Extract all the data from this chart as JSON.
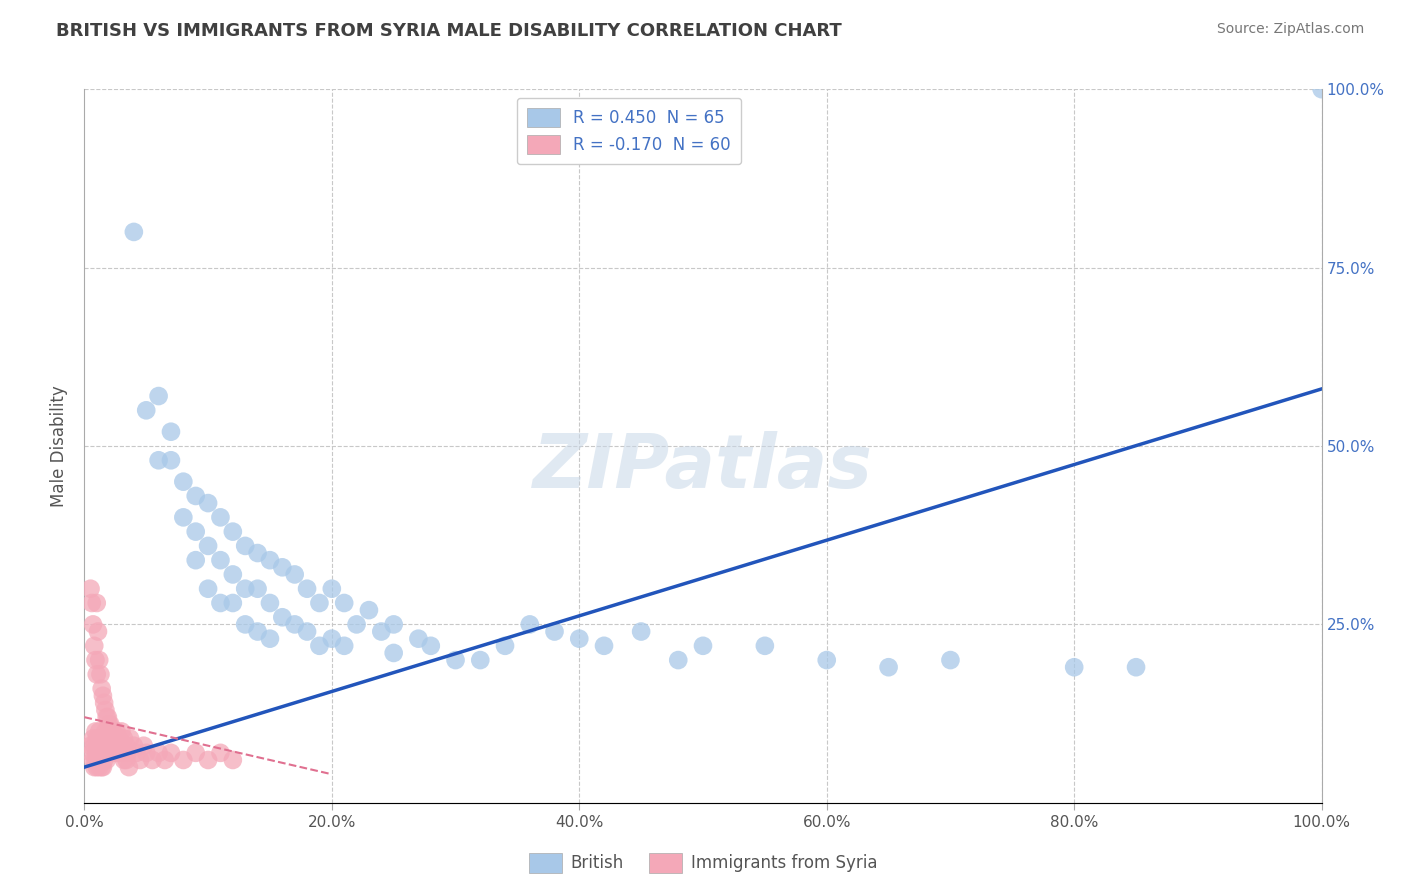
{
  "title": "BRITISH VS IMMIGRANTS FROM SYRIA MALE DISABILITY CORRELATION CHART",
  "source": "Source: ZipAtlas.com",
  "xlabel": "",
  "ylabel": "Male Disability",
  "xlim": [
    0,
    1.0
  ],
  "ylim": [
    0,
    1.0
  ],
  "xtick_labels": [
    "0.0%",
    "20.0%",
    "40.0%",
    "60.0%",
    "80.0%",
    "100.0%"
  ],
  "ytick_right_labels": [
    "25.0%",
    "50.0%",
    "75.0%",
    "100.0%"
  ],
  "watermark_text": "ZIPatlas",
  "legend_r1": "R = 0.450  N = 65",
  "legend_r2": "R = -0.170  N = 60",
  "color_british": "#a8c8e8",
  "color_syria": "#f4a8b8",
  "color_british_line": "#2255bb",
  "color_syria_line": "#e07090",
  "background_color": "#ffffff",
  "grid_color": "#c8c8c8",
  "title_color": "#404040",
  "british_x": [
    0.04,
    0.05,
    0.06,
    0.06,
    0.07,
    0.07,
    0.08,
    0.08,
    0.09,
    0.09,
    0.09,
    0.1,
    0.1,
    0.1,
    0.11,
    0.11,
    0.11,
    0.12,
    0.12,
    0.12,
    0.13,
    0.13,
    0.13,
    0.14,
    0.14,
    0.14,
    0.15,
    0.15,
    0.15,
    0.16,
    0.16,
    0.17,
    0.17,
    0.18,
    0.18,
    0.19,
    0.19,
    0.2,
    0.2,
    0.21,
    0.21,
    0.22,
    0.23,
    0.24,
    0.25,
    0.25,
    0.27,
    0.28,
    0.3,
    0.32,
    0.34,
    0.36,
    0.38,
    0.4,
    0.42,
    0.45,
    0.48,
    0.5,
    0.55,
    0.6,
    0.65,
    0.7,
    0.8,
    0.85,
    1.0
  ],
  "british_y": [
    0.8,
    0.55,
    0.57,
    0.48,
    0.52,
    0.48,
    0.45,
    0.4,
    0.43,
    0.38,
    0.34,
    0.42,
    0.36,
    0.3,
    0.4,
    0.34,
    0.28,
    0.38,
    0.32,
    0.28,
    0.36,
    0.3,
    0.25,
    0.35,
    0.3,
    0.24,
    0.34,
    0.28,
    0.23,
    0.33,
    0.26,
    0.32,
    0.25,
    0.3,
    0.24,
    0.28,
    0.22,
    0.3,
    0.23,
    0.28,
    0.22,
    0.25,
    0.27,
    0.24,
    0.25,
    0.21,
    0.23,
    0.22,
    0.2,
    0.2,
    0.22,
    0.25,
    0.24,
    0.23,
    0.22,
    0.24,
    0.2,
    0.22,
    0.22,
    0.2,
    0.19,
    0.2,
    0.19,
    0.19,
    1.0
  ],
  "syria_x": [
    0.005,
    0.006,
    0.007,
    0.007,
    0.008,
    0.008,
    0.009,
    0.009,
    0.01,
    0.01,
    0.01,
    0.011,
    0.011,
    0.012,
    0.012,
    0.012,
    0.013,
    0.013,
    0.014,
    0.014,
    0.015,
    0.015,
    0.015,
    0.016,
    0.016,
    0.017,
    0.017,
    0.018,
    0.018,
    0.019,
    0.02,
    0.02,
    0.021,
    0.022,
    0.023,
    0.024,
    0.025,
    0.026,
    0.027,
    0.028,
    0.029,
    0.03,
    0.032,
    0.034,
    0.035,
    0.037,
    0.04,
    0.042,
    0.045,
    0.048,
    0.05,
    0.055,
    0.06,
    0.065,
    0.07,
    0.08,
    0.09,
    0.1,
    0.11,
    0.12
  ],
  "syria_y": [
    0.08,
    0.07,
    0.09,
    0.06,
    0.08,
    0.05,
    0.1,
    0.06,
    0.09,
    0.07,
    0.05,
    0.08,
    0.06,
    0.1,
    0.07,
    0.05,
    0.09,
    0.06,
    0.08,
    0.05,
    0.09,
    0.07,
    0.05,
    0.08,
    0.06,
    0.1,
    0.07,
    0.09,
    0.06,
    0.08,
    0.1,
    0.07,
    0.09,
    0.08,
    0.07,
    0.09,
    0.08,
    0.1,
    0.07,
    0.09,
    0.08,
    0.1,
    0.09,
    0.08,
    0.07,
    0.09,
    0.08,
    0.07,
    0.06,
    0.08,
    0.07,
    0.06,
    0.07,
    0.06,
    0.07,
    0.06,
    0.07,
    0.06,
    0.07,
    0.06
  ],
  "syria_cluster_x": [
    0.005,
    0.006,
    0.007,
    0.008,
    0.009,
    0.01,
    0.01,
    0.011,
    0.012,
    0.013,
    0.014,
    0.015,
    0.016,
    0.017,
    0.018,
    0.019,
    0.02,
    0.021,
    0.022,
    0.023,
    0.024,
    0.025,
    0.026,
    0.027,
    0.028,
    0.029,
    0.03,
    0.032,
    0.034,
    0.036
  ],
  "syria_cluster_y": [
    0.3,
    0.28,
    0.25,
    0.22,
    0.2,
    0.18,
    0.28,
    0.24,
    0.2,
    0.18,
    0.16,
    0.15,
    0.14,
    0.13,
    0.12,
    0.12,
    0.11,
    0.11,
    0.1,
    0.1,
    0.09,
    0.09,
    0.08,
    0.08,
    0.07,
    0.07,
    0.07,
    0.06,
    0.06,
    0.05
  ],
  "british_line_x": [
    0.0,
    1.0
  ],
  "british_line_y": [
    0.05,
    0.58
  ],
  "syria_line_x": [
    0.0,
    0.2
  ],
  "syria_line_y": [
    0.12,
    0.04
  ]
}
